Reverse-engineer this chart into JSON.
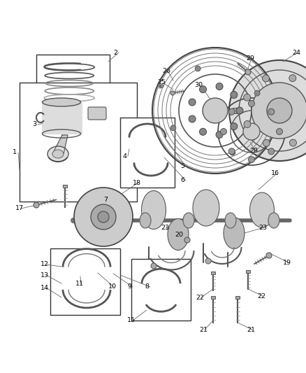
{
  "bg_color": "#ffffff",
  "line_color": "#444444",
  "label_color": "#000000",
  "fig_width": 4.38,
  "fig_height": 5.33,
  "dpi": 100,
  "font_size": 6.5
}
